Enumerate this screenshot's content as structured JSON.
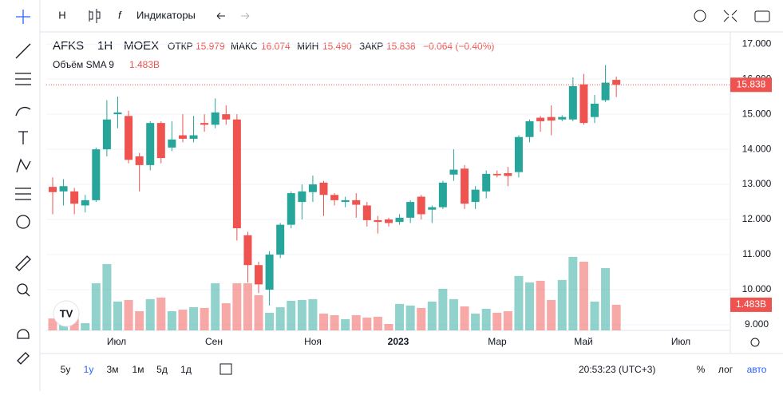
{
  "toolbar": {
    "interval": "Н",
    "indicators": "Индикаторы"
  },
  "chart_data": {
    "type": "candlestick",
    "symbol": "AFKS",
    "interval": "1H",
    "exchange": "MOEX",
    "stats": {
      "open_label": "ОТКР",
      "open": "15.979",
      "high_label": "МАКС",
      "high": "16.074",
      "low_label": "МИН",
      "low": "15.490",
      "close_label": "ЗАКР",
      "close": "15.838",
      "change": "−0.064 (−0.40%)"
    },
    "up_color": "#26a69a",
    "down_color": "#ef5350",
    "open": [
      12.93,
      12.8,
      12.8,
      12.4,
      12.55,
      14.0,
      15.0,
      14.95,
      13.8,
      13.55,
      14.75,
      14.05,
      14.4,
      14.3,
      14.75,
      14.7,
      15.0,
      14.85,
      11.55,
      10.7,
      10.0,
      11.0,
      11.85,
      12.5,
      12.78,
      13.05,
      12.7,
      12.5,
      12.55,
      12.4,
      11.98,
      12.0,
      11.93,
      12.05,
      12.65,
      12.28,
      12.35,
      13.28,
      13.45,
      12.5,
      12.8,
      13.3,
      13.32,
      13.35,
      14.35,
      14.9,
      14.92,
      14.85,
      14.85,
      15.85,
      14.92,
      15.4,
      15.979
    ],
    "high": [
      13.2,
      13.15,
      12.9,
      12.7,
      14.05,
      15.4,
      15.5,
      15.1,
      13.9,
      14.8,
      14.8,
      14.8,
      15.0,
      14.95,
      15.0,
      15.45,
      15.25,
      15.0,
      11.65,
      10.8,
      11.1,
      11.9,
      12.8,
      13.0,
      13.25,
      13.1,
      12.75,
      12.65,
      12.75,
      12.5,
      12.1,
      12.05,
      12.15,
      12.55,
      12.7,
      12.4,
      13.1,
      14.0,
      13.55,
      12.95,
      13.4,
      13.4,
      13.5,
      14.4,
      14.85,
      14.95,
      15.25,
      14.97,
      16.05,
      16.15,
      15.55,
      16.4,
      16.074
    ],
    "low": [
      12.15,
      12.4,
      12.15,
      12.2,
      12.5,
      13.8,
      14.6,
      13.6,
      12.8,
      13.4,
      13.6,
      13.95,
      14.2,
      14.2,
      14.5,
      14.6,
      14.7,
      11.4,
      10.2,
      9.9,
      9.55,
      10.9,
      11.75,
      12.0,
      12.5,
      12.1,
      12.4,
      12.35,
      12.05,
      11.8,
      11.6,
      11.8,
      11.85,
      11.9,
      12.0,
      11.9,
      12.3,
      13.1,
      12.3,
      12.3,
      12.6,
      13.2,
      12.95,
      13.2,
      14.2,
      14.5,
      14.4,
      14.8,
      14.8,
      14.7,
      14.75,
      15.35,
      15.49
    ],
    "close": [
      12.78,
      12.95,
      12.45,
      12.55,
      14.0,
      14.85,
      15.05,
      13.7,
      13.55,
      14.75,
      13.75,
      14.28,
      14.3,
      14.4,
      14.7,
      15.05,
      14.85,
      11.75,
      10.7,
      10.15,
      11.0,
      11.85,
      12.75,
      12.8,
      13.0,
      12.7,
      12.55,
      12.55,
      12.42,
      11.98,
      11.93,
      11.9,
      12.05,
      12.5,
      12.15,
      12.35,
      13.05,
      13.42,
      12.45,
      12.85,
      13.3,
      13.26,
      13.24,
      14.35,
      14.8,
      14.8,
      14.82,
      14.92,
      15.8,
      14.75,
      15.3,
      15.9,
      15.838
    ],
    "last_price_label": "15.838",
    "volume": {
      "name": "Объём SMA 9",
      "value_label": "1.483B",
      "last": 1.483,
      "values": [
        0.69,
        0.56,
        0.69,
        0.42,
        2.73,
        3.84,
        1.67,
        1.76,
        1.11,
        1.81,
        1.9,
        1.11,
        1.2,
        1.34,
        1.3,
        2.73,
        1.57,
        2.73,
        2.73,
        2.04,
        1.02,
        1.34,
        1.71,
        1.76,
        1.81,
        0.97,
        0.88,
        0.65,
        0.88,
        0.74,
        0.79,
        0.37,
        1.53,
        1.44,
        1.3,
        1.67,
        2.41,
        1.81,
        1.39,
        0.97,
        1.25,
        1.02,
        1.11,
        3.15,
        2.78,
        2.87,
        1.76,
        2.92,
        4.26,
        3.98,
        1.67,
        3.61,
        1.483
      ],
      "vlim": [
        0,
        17.2
      ]
    },
    "ylim": [
      8.84,
      17.3
    ],
    "yticks": [
      {
        "value": 17,
        "label": "17.000"
      },
      {
        "value": 16,
        "label": "16.000"
      },
      {
        "value": 15,
        "label": "15.000"
      },
      {
        "value": 14,
        "label": "14.000"
      },
      {
        "value": 13,
        "label": "13.000"
      },
      {
        "value": 12,
        "label": "12.000"
      },
      {
        "value": 11,
        "label": "11.000"
      },
      {
        "value": 10,
        "label": "10.000"
      },
      {
        "value": 9,
        "label": "9.000"
      }
    ],
    "x_labels": [
      "Июл",
      "Сен",
      "Ноя",
      "2023",
      "Мар",
      "Май",
      "Июл"
    ]
  },
  "bottom": {
    "ranges": [
      "5y",
      "1y",
      "3м",
      "1м",
      "5д",
      "1д"
    ],
    "time": "20:53:23 (UTC+3)",
    "percent": "%",
    "log": "лог",
    "auto": "авто"
  }
}
